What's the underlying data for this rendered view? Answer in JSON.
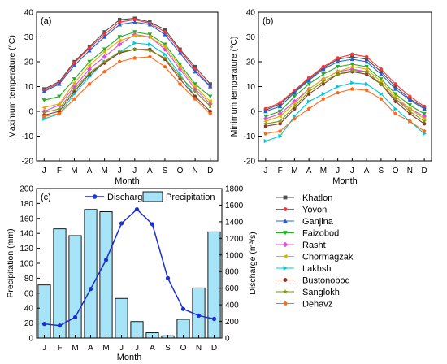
{
  "chart_data": [
    {
      "type": "line",
      "panel_label": "(a)",
      "xlabel": "Month",
      "ylabel": "Maximum temperature (°C)",
      "ylim": [
        -20,
        40
      ],
      "yticks": [
        -20,
        -10,
        0,
        10,
        20,
        30,
        40
      ],
      "categories": [
        "J",
        "F",
        "M",
        "A",
        "M",
        "J",
        "J",
        "A",
        "S",
        "O",
        "N",
        "D"
      ],
      "series": [
        {
          "name": "Khatlon",
          "values": [
            9,
            12,
            20,
            26,
            32,
            37,
            37.5,
            36,
            33,
            25,
            18,
            11
          ]
        },
        {
          "name": "Yovon",
          "values": [
            8.5,
            11.5,
            19.5,
            25.5,
            31,
            36,
            37,
            35.5,
            32,
            24.5,
            17,
            10
          ]
        },
        {
          "name": "Ganjina",
          "values": [
            8,
            11,
            18.5,
            24.5,
            30,
            35,
            36,
            35,
            31,
            23.5,
            16,
            10
          ]
        },
        {
          "name": "Faizobod",
          "values": [
            4.5,
            6,
            13,
            20,
            25,
            30,
            32,
            31,
            27,
            19,
            11,
            6
          ]
        },
        {
          "name": "Rasht",
          "values": [
            0,
            2.5,
            10,
            17,
            22,
            27,
            31,
            30,
            25,
            17,
            9,
            3
          ]
        },
        {
          "name": "Chormagzak",
          "values": [
            1.5,
            3,
            11.5,
            18.5,
            24,
            28.5,
            30.5,
            30,
            26,
            18,
            10,
            4
          ]
        },
        {
          "name": "Lakhsh",
          "values": [
            -3,
            -1,
            7,
            14,
            20,
            24,
            27.5,
            27,
            23,
            15,
            6,
            0
          ]
        },
        {
          "name": "Bustonobod",
          "values": [
            -1.5,
            0,
            8,
            15,
            19.5,
            23.5,
            25,
            25,
            21,
            13,
            6,
            0
          ]
        },
        {
          "name": "Sanglokh",
          "values": [
            -0.5,
            1,
            9,
            15.5,
            20,
            24,
            25,
            24.5,
            21.5,
            14,
            8,
            2
          ]
        },
        {
          "name": "Dehavz",
          "values": [
            -2,
            -1,
            5,
            11,
            16,
            20,
            21.5,
            22,
            18,
            11,
            5,
            -1
          ]
        }
      ]
    },
    {
      "type": "line",
      "panel_label": "(b)",
      "xlabel": "Month",
      "ylabel": "Minimum temperature (°C)",
      "ylim": [
        -20,
        40
      ],
      "yticks": [
        -20,
        -10,
        0,
        10,
        20,
        30,
        40
      ],
      "categories": [
        "J",
        "F",
        "M",
        "A",
        "M",
        "J",
        "J",
        "A",
        "S",
        "O",
        "N",
        "D"
      ],
      "series": [
        {
          "name": "Khatlon",
          "values": [
            0.5,
            3,
            8,
            13,
            17.5,
            21,
            22,
            21,
            16,
            10,
            5,
            1.5
          ]
        },
        {
          "name": "Yovon",
          "values": [
            1,
            3.5,
            8.5,
            13.5,
            18,
            21.5,
            23,
            22,
            17,
            11,
            6,
            2
          ]
        },
        {
          "name": "Ganjina",
          "values": [
            0,
            2,
            7.5,
            12.5,
            17,
            20,
            21,
            20,
            15,
            9,
            4.5,
            1
          ]
        },
        {
          "name": "Faizobod",
          "values": [
            -2,
            0,
            6,
            11,
            15,
            18,
            19,
            18,
            13,
            7,
            2.5,
            -1
          ]
        },
        {
          "name": "Rasht",
          "values": [
            -3,
            -1,
            4,
            9,
            13,
            16,
            17,
            16,
            11,
            5,
            1,
            -2
          ]
        },
        {
          "name": "Chormagzak",
          "values": [
            -4,
            -2,
            3,
            9,
            13,
            16,
            18,
            17,
            12,
            6,
            1,
            -3
          ]
        },
        {
          "name": "Lakhsh",
          "values": [
            -12,
            -10,
            -2,
            4,
            7,
            10,
            11.5,
            11,
            7,
            1,
            -4,
            -9
          ]
        },
        {
          "name": "Bustonobod",
          "values": [
            -6,
            -5,
            1,
            7,
            11,
            15,
            16,
            15,
            11,
            4,
            -1,
            -5
          ]
        },
        {
          "name": "Sanglokh",
          "values": [
            -5,
            -4,
            2,
            8,
            12,
            15,
            16.5,
            16,
            11,
            5,
            0,
            -4
          ]
        },
        {
          "name": "Dehavz",
          "values": [
            -9,
            -8,
            -3,
            1,
            5,
            7.5,
            9,
            8.5,
            5,
            -1,
            -4,
            -8
          ]
        }
      ]
    },
    {
      "type": "bar",
      "panel_label": "(c)",
      "xlabel": "Month",
      "ylabel": "Precipitation (mm)",
      "ylabel_right": "Discharge (m³/s)",
      "ylim": [
        0,
        200
      ],
      "yticks": [
        0,
        20,
        40,
        60,
        80,
        100,
        120,
        140,
        160,
        180,
        200
      ],
      "ylim_right": [
        0,
        1800
      ],
      "yticks_right": [
        0,
        200,
        400,
        600,
        800,
        1000,
        1200,
        1400,
        1600,
        1800
      ],
      "categories": [
        "J",
        "F",
        "M",
        "A",
        "M",
        "J",
        "J",
        "A",
        "S",
        "O",
        "N",
        "D"
      ],
      "series": [
        {
          "name": "Precipitation",
          "type": "bar",
          "axis": "left",
          "values": [
            71,
            146,
            137,
            172,
            169,
            53,
            22,
            7,
            3,
            25,
            67,
            142
          ]
        },
        {
          "name": "Discharge",
          "type": "line",
          "axis": "right",
          "values": [
            170,
            150,
            250,
            590,
            940,
            1380,
            1550,
            1370,
            720,
            350,
            270,
            230
          ]
        }
      ]
    }
  ],
  "legend": {
    "items": [
      {
        "label": "Khatlon",
        "color": "#505050",
        "marker": "square"
      },
      {
        "label": "Yovon",
        "color": "#ff3333",
        "marker": "circle"
      },
      {
        "label": "Ganjina",
        "color": "#2060e0",
        "marker": "triangle-up"
      },
      {
        "label": "Faizobod",
        "color": "#20b020",
        "marker": "triangle-down"
      },
      {
        "label": "Rasht",
        "color": "#e04ce0",
        "marker": "diamond"
      },
      {
        "label": "Chormagzak",
        "color": "#e0b000",
        "marker": "triangle-left"
      },
      {
        "label": "Lakhsh",
        "color": "#00c8d8",
        "marker": "triangle-right"
      },
      {
        "label": "Bustonobod",
        "color": "#8b3a2a",
        "marker": "hexagon"
      },
      {
        "label": "Sanglokh",
        "color": "#7a9a10",
        "marker": "star"
      },
      {
        "label": "Dehavz",
        "color": "#ff6a1a",
        "marker": "pentagon"
      }
    ]
  },
  "colors": {
    "bar_fill": "#a8e4f8",
    "discharge_line": "#1a2fd0"
  }
}
